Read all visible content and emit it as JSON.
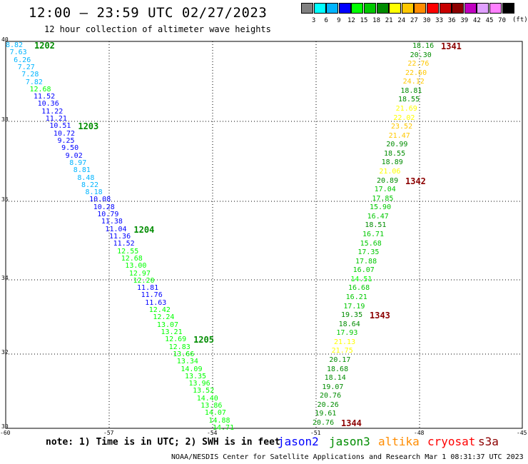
{
  "title": "12:00 – 23:59 UTC 02/27/2023",
  "subtitle": "12 hour collection of altimeter wave heights",
  "legend": {
    "unit": "(ft)",
    "labels": [
      "3",
      "6",
      "9",
      "12",
      "15",
      "18",
      "21",
      "24",
      "27",
      "30",
      "33",
      "36",
      "39",
      "42",
      "45",
      "70"
    ],
    "colors": [
      "#808080",
      "#00ffff",
      "#00b4ff",
      "#0000ff",
      "#00ff00",
      "#00c800",
      "#008c00",
      "#ffff00",
      "#ffc800",
      "#ff8c00",
      "#ff0000",
      "#c80000",
      "#8c0000",
      "#c000c0",
      "#e0a0ff",
      "#ff80ff",
      "#000000"
    ]
  },
  "axes": {
    "x_ticks": [
      "-60",
      "-57",
      "-54",
      "-51",
      "-48",
      "-45"
    ],
    "y_ticks": [
      "40",
      "38",
      "36",
      "34",
      "32",
      "30"
    ]
  },
  "note": "note:  1) Time is in UTC; 2) SWH is in feet",
  "satellites": [
    {
      "name": "jason2",
      "color": "#0000ff"
    },
    {
      "name": "jason3",
      "color": "#008c00"
    },
    {
      "name": "altika",
      "color": "#ff8c00"
    },
    {
      "name": "cryosat",
      "color": "#ff0000"
    },
    {
      "name": "s3a",
      "color": "#8c0000"
    }
  ],
  "credit": "NOAA/NESDIS Center for Satellite Applications and Research    Mar  1 08:31:37 UTC 2023",
  "tracks": [
    {
      "name": "western-track",
      "start": [
        8,
        64
      ],
      "end": [
        298,
        600
      ],
      "values": [
        "8.82",
        "7.63",
        "6.26",
        "7.27",
        "7.28",
        "7.82",
        "12.68",
        "11.52",
        "10.36",
        "11.22",
        "11.21",
        "10.51",
        "10.72",
        "9.25",
        "9.50",
        "9.02",
        "8.97",
        "8.81",
        "8.48",
        "8.22",
        "8.18",
        "10.08",
        "10.28",
        "10.79",
        "11.38",
        "11.04",
        "11.36",
        "11.52",
        "12.55",
        "12.68",
        "13.00",
        "12.97",
        "12.20",
        "11.81",
        "11.76",
        "11.63",
        "12.42",
        "12.24",
        "13.07",
        "13.21",
        "12.69",
        "12.83",
        "13.66",
        "13.34",
        "14.09",
        "13.35",
        "13.96",
        "13.52",
        "14.40",
        "13.86",
        "14.07",
        "14.88",
        "14.71"
      ],
      "colors": [
        "#00b4ff",
        "#00b4ff",
        "#00b4ff",
        "#00b4ff",
        "#00b4ff",
        "#00b4ff",
        "#00ff00",
        "#0000ff",
        "#0000ff",
        "#0000ff",
        "#0000ff",
        "#0000ff",
        "#0000ff",
        "#0000ff",
        "#0000ff",
        "#0000ff",
        "#00b4ff",
        "#00b4ff",
        "#00b4ff",
        "#00b4ff",
        "#00b4ff",
        "#0000ff",
        "#0000ff",
        "#0000ff",
        "#0000ff",
        "#0000ff",
        "#0000ff",
        "#0000ff",
        "#00ff00",
        "#00ff00",
        "#00ff00",
        "#00ff00",
        "#00ff00",
        "#0000ff",
        "#0000ff",
        "#0000ff",
        "#00ff00",
        "#00ff00",
        "#00ff00",
        "#00ff00",
        "#00ff00",
        "#00ff00",
        "#00ff00",
        "#00ff00",
        "#00ff00",
        "#00ff00",
        "#00ff00",
        "#00ff00",
        "#00ff00",
        "#00ff00",
        "#00ff00",
        "#00ff00",
        "#00ff00"
      ],
      "passes": [
        {
          "label": "1202",
          "index": 0,
          "color": "#008c00"
        },
        {
          "label": "1203",
          "index": 11,
          "color": "#008c00"
        },
        {
          "label": "1204",
          "index": 25,
          "color": "#008c00"
        },
        {
          "label": "1205",
          "index": 40,
          "color": "#008c00"
        }
      ]
    },
    {
      "name": "eastern-track",
      "start": [
        578,
        65
      ],
      "end": [
        438,
        593
      ],
      "values": [
        "18.16",
        "20.30",
        "22.76",
        "22.60",
        "24.12",
        "18.81",
        "18.55",
        "21.69",
        "22.02",
        "23.52",
        "21.47",
        "20.99",
        "18.55",
        "18.89",
        "21.06",
        "20.89",
        "17.04",
        "17.85",
        "15.90",
        "16.47",
        "18.51",
        "16.71",
        "15.68",
        "17.35",
        "17.88",
        "16.07",
        "14.51",
        "16.68",
        "16.21",
        "17.19",
        "19.35",
        "18.64",
        "17.93",
        "21.13",
        "21.75",
        "20.17",
        "18.68",
        "18.14",
        "19.07",
        "20.76",
        "20.26",
        "19.61",
        "20.76"
      ],
      "colors": [
        "#008c00",
        "#008c00",
        "#ffc800",
        "#ffc800",
        "#ffc800",
        "#008c00",
        "#008c00",
        "#ffff00",
        "#ffff00",
        "#ffc800",
        "#ffc800",
        "#008c00",
        "#008c00",
        "#008c00",
        "#ffff00",
        "#008c00",
        "#00c800",
        "#00c800",
        "#00c800",
        "#00c800",
        "#008c00",
        "#00c800",
        "#00c800",
        "#00c800",
        "#00c800",
        "#00c800",
        "#00ff00",
        "#00c800",
        "#00c800",
        "#00c800",
        "#008c00",
        "#008c00",
        "#00c800",
        "#ffff00",
        "#ffff00",
        "#008c00",
        "#008c00",
        "#008c00",
        "#008c00",
        "#008c00",
        "#008c00",
        "#008c00",
        "#008c00"
      ],
      "passes": [
        {
          "label": "1341",
          "index": 0,
          "color": "#8c0000"
        },
        {
          "label": "1342",
          "index": 15,
          "color": "#8c0000"
        },
        {
          "label": "1343",
          "index": 30,
          "color": "#8c0000"
        },
        {
          "label": "1344",
          "index": 42,
          "color": "#8c0000"
        }
      ]
    }
  ]
}
